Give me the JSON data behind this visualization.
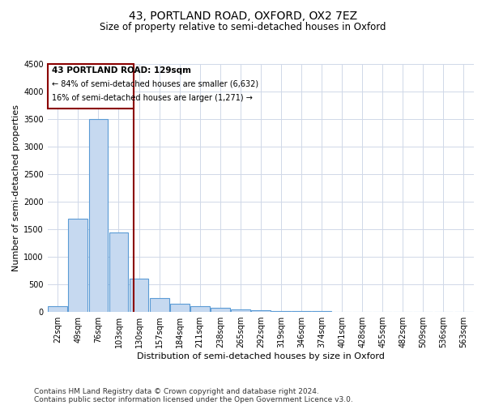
{
  "title": "43, PORTLAND ROAD, OXFORD, OX2 7EZ",
  "subtitle": "Size of property relative to semi-detached houses in Oxford",
  "xlabel": "Distribution of semi-detached houses by size in Oxford",
  "ylabel": "Number of semi-detached properties",
  "footnote1": "Contains HM Land Registry data © Crown copyright and database right 2024.",
  "footnote2": "Contains public sector information licensed under the Open Government Licence v3.0.",
  "property_label": "43 PORTLAND ROAD: 129sqm",
  "pct_smaller": "← 84% of semi-detached houses are smaller (6,632)",
  "pct_larger": "16% of semi-detached houses are larger (1,271) →",
  "categories": [
    "22sqm",
    "49sqm",
    "76sqm",
    "103sqm",
    "130sqm",
    "157sqm",
    "184sqm",
    "211sqm",
    "238sqm",
    "265sqm",
    "292sqm",
    "319sqm",
    "346sqm",
    "374sqm",
    "401sqm",
    "428sqm",
    "455sqm",
    "482sqm",
    "509sqm",
    "536sqm",
    "563sqm"
  ],
  "bar_values": [
    100,
    1700,
    3500,
    1450,
    600,
    250,
    150,
    100,
    75,
    50,
    35,
    25,
    20,
    15,
    10,
    8,
    6,
    5,
    4,
    3,
    2
  ],
  "bar_color": "#c6d9f0",
  "bar_edge_color": "#5b9bd5",
  "vline_color": "#8B0000",
  "vline_x_index": 3.72,
  "ylim": [
    0,
    4500
  ],
  "yticks": [
    0,
    500,
    1000,
    1500,
    2000,
    2500,
    3000,
    3500,
    4000,
    4500
  ],
  "bg_color": "#ffffff",
  "grid_color": "#d0d8e8",
  "annotation_box_color": "#8B0000",
  "title_fontsize": 10,
  "subtitle_fontsize": 8.5,
  "axis_label_fontsize": 8,
  "tick_fontsize": 7,
  "annotation_fontsize": 7.5,
  "footnote_fontsize": 6.5
}
